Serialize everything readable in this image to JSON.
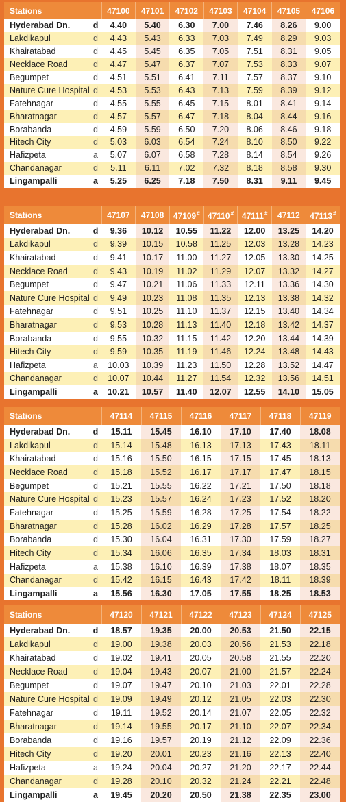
{
  "stations_label": "Stations",
  "blocks": [
    {
      "trains": [
        {
          "num": "47100",
          "mark": ""
        },
        {
          "num": "47101",
          "mark": ""
        },
        {
          "num": "47102",
          "mark": ""
        },
        {
          "num": "47103",
          "mark": ""
        },
        {
          "num": "47104",
          "mark": ""
        },
        {
          "num": "47105",
          "mark": ""
        },
        {
          "num": "47106",
          "mark": ""
        }
      ],
      "rows": [
        {
          "station": "Hyderabad Dn.",
          "code": "d",
          "times": [
            "4.40",
            "5.40",
            "6.30",
            "7.00",
            "7.46",
            "8.26",
            "9.00"
          ]
        },
        {
          "station": "Lakdikapul",
          "code": "d",
          "times": [
            "4.43",
            "5.43",
            "6.33",
            "7.03",
            "7.49",
            "8.29",
            "9.03"
          ]
        },
        {
          "station": "Khairatabad",
          "code": "d",
          "times": [
            "4.45",
            "5.45",
            "6.35",
            "7.05",
            "7.51",
            "8.31",
            "9.05"
          ]
        },
        {
          "station": "Necklace Road",
          "code": "d",
          "times": [
            "4.47",
            "5.47",
            "6.37",
            "7.07",
            "7.53",
            "8.33",
            "9.07"
          ]
        },
        {
          "station": "Begumpet",
          "code": "d",
          "times": [
            "4.51",
            "5.51",
            "6.41",
            "7.11",
            "7.57",
            "8.37",
            "9.10"
          ]
        },
        {
          "station": "Nature Cure Hospital",
          "code": "d",
          "times": [
            "4.53",
            "5.53",
            "6.43",
            "7.13",
            "7.59",
            "8.39",
            "9.12"
          ]
        },
        {
          "station": "Fatehnagar",
          "code": "d",
          "times": [
            "4.55",
            "5.55",
            "6.45",
            "7.15",
            "8.01",
            "8.41",
            "9.14"
          ]
        },
        {
          "station": "Bharatnagar",
          "code": "d",
          "times": [
            "4.57",
            "5.57",
            "6.47",
            "7.18",
            "8.04",
            "8.44",
            "9.16"
          ]
        },
        {
          "station": "Borabanda",
          "code": "d",
          "times": [
            "4.59",
            "5.59",
            "6.50",
            "7.20",
            "8.06",
            "8.46",
            "9.18"
          ]
        },
        {
          "station": "Hitech City",
          "code": "d",
          "times": [
            "5.03",
            "6.03",
            "6.54",
            "7.24",
            "8.10",
            "8.50",
            "9.22"
          ]
        },
        {
          "station": "Hafizpeta",
          "code": "a",
          "times": [
            "5.07",
            "6.07",
            "6.58",
            "7.28",
            "8.14",
            "8.54",
            "9.26"
          ]
        },
        {
          "station": "Chandanagar",
          "code": "d",
          "times": [
            "5.11",
            "6.11",
            "7.02",
            "7.32",
            "8.18",
            "8.58",
            "9.30"
          ]
        },
        {
          "station": "Lingampalli",
          "code": "a",
          "times": [
            "5.25",
            "6.25",
            "7.18",
            "7.50",
            "8.31",
            "9.11",
            "9.45"
          ]
        }
      ]
    },
    {
      "trains": [
        {
          "num": "47107",
          "mark": ""
        },
        {
          "num": "47108",
          "mark": ""
        },
        {
          "num": "47109",
          "mark": "#"
        },
        {
          "num": "47110",
          "mark": "#"
        },
        {
          "num": "47111",
          "mark": "#"
        },
        {
          "num": "47112",
          "mark": ""
        },
        {
          "num": "47113",
          "mark": "#"
        }
      ],
      "rows": [
        {
          "station": "Hyderabad Dn.",
          "code": "d",
          "times": [
            "9.36",
            "10.12",
            "10.55",
            "11.22",
            "12.00",
            "13.25",
            "14.20"
          ]
        },
        {
          "station": "Lakdikapul",
          "code": "d",
          "times": [
            "9.39",
            "10.15",
            "10.58",
            "11.25",
            "12.03",
            "13.28",
            "14.23"
          ]
        },
        {
          "station": "Khairatabad",
          "code": "d",
          "times": [
            "9.41",
            "10.17",
            "11.00",
            "11.27",
            "12.05",
            "13.30",
            "14.25"
          ]
        },
        {
          "station": "Necklace Road",
          "code": "d",
          "times": [
            "9.43",
            "10.19",
            "11.02",
            "11.29",
            "12.07",
            "13.32",
            "14.27"
          ]
        },
        {
          "station": "Begumpet",
          "code": "d",
          "times": [
            "9.47",
            "10.21",
            "11.06",
            "11.33",
            "12.11",
            "13.36",
            "14.30"
          ]
        },
        {
          "station": "Nature Cure Hospital",
          "code": "d",
          "times": [
            "9.49",
            "10.23",
            "11.08",
            "11.35",
            "12.13",
            "13.38",
            "14.32"
          ]
        },
        {
          "station": "Fatehnagar",
          "code": "d",
          "times": [
            "9.51",
            "10.25",
            "11.10",
            "11.37",
            "12.15",
            "13.40",
            "14.34"
          ]
        },
        {
          "station": "Bharatnagar",
          "code": "d",
          "times": [
            "9.53",
            "10.28",
            "11.13",
            "11.40",
            "12.18",
            "13.42",
            "14.37"
          ]
        },
        {
          "station": "Borabanda",
          "code": "d",
          "times": [
            "9.55",
            "10.32",
            "11.15",
            "11.42",
            "12.20",
            "13.44",
            "14.39"
          ]
        },
        {
          "station": "Hitech City",
          "code": "d",
          "times": [
            "9.59",
            "10.35",
            "11.19",
            "11.46",
            "12.24",
            "13.48",
            "14.43"
          ]
        },
        {
          "station": "Hafizpeta",
          "code": "a",
          "times": [
            "10.03",
            "10.39",
            "11.23",
            "11.50",
            "12.28",
            "13.52",
            "14.47"
          ]
        },
        {
          "station": "Chandanagar",
          "code": "d",
          "times": [
            "10.07",
            "10.44",
            "11.27",
            "11.54",
            "12.32",
            "13.56",
            "14.51"
          ]
        },
        {
          "station": "Lingampalli",
          "code": "a",
          "times": [
            "10.21",
            "10.57",
            "11.40",
            "12.07",
            "12.55",
            "14.10",
            "15.05"
          ]
        }
      ]
    },
    {
      "trains": [
        {
          "num": "47114",
          "mark": ""
        },
        {
          "num": "47115",
          "mark": ""
        },
        {
          "num": "47116",
          "mark": ""
        },
        {
          "num": "47117",
          "mark": ""
        },
        {
          "num": "47118",
          "mark": ""
        },
        {
          "num": "47119",
          "mark": ""
        }
      ],
      "rows": [
        {
          "station": "Hyderabad Dn.",
          "code": "d",
          "times": [
            "15.11",
            "15.45",
            "16.10",
            "17.10",
            "17.40",
            "18.08"
          ]
        },
        {
          "station": "Lakdikapul",
          "code": "d",
          "times": [
            "15.14",
            "15.48",
            "16.13",
            "17.13",
            "17.43",
            "18.11"
          ]
        },
        {
          "station": "Khairatabad",
          "code": "d",
          "times": [
            "15.16",
            "15.50",
            "16.15",
            "17.15",
            "17.45",
            "18.13"
          ]
        },
        {
          "station": "Necklace Road",
          "code": "d",
          "times": [
            "15.18",
            "15.52",
            "16.17",
            "17.17",
            "17.47",
            "18.15"
          ]
        },
        {
          "station": "Begumpet",
          "code": "d",
          "times": [
            "15.21",
            "15.55",
            "16.22",
            "17.21",
            "17.50",
            "18.18"
          ]
        },
        {
          "station": "Nature Cure Hospital",
          "code": "d",
          "times": [
            "15.23",
            "15.57",
            "16.24",
            "17.23",
            "17.52",
            "18.20"
          ]
        },
        {
          "station": "Fatehnagar",
          "code": "d",
          "times": [
            "15.25",
            "15.59",
            "16.28",
            "17.25",
            "17.54",
            "18.22"
          ]
        },
        {
          "station": "Bharatnagar",
          "code": "d",
          "times": [
            "15.28",
            "16.02",
            "16.29",
            "17.28",
            "17.57",
            "18.25"
          ]
        },
        {
          "station": "Borabanda",
          "code": "d",
          "times": [
            "15.30",
            "16.04",
            "16.31",
            "17.30",
            "17.59",
            "18.27"
          ]
        },
        {
          "station": "Hitech City",
          "code": "d",
          "times": [
            "15.34",
            "16.06",
            "16.35",
            "17.34",
            "18.03",
            "18.31"
          ]
        },
        {
          "station": "Hafizpeta",
          "code": "a",
          "times": [
            "15.38",
            "16.10",
            "16.39",
            "17.38",
            "18.07",
            "18.35"
          ]
        },
        {
          "station": "Chandanagar",
          "code": "d",
          "times": [
            "15.42",
            "16.15",
            "16.43",
            "17.42",
            "18.11",
            "18.39"
          ]
        },
        {
          "station": "Lingampalli",
          "code": "a",
          "times": [
            "15.56",
            "16.30",
            "17.05",
            "17.55",
            "18.25",
            "18.53"
          ]
        }
      ]
    },
    {
      "trains": [
        {
          "num": "47120",
          "mark": ""
        },
        {
          "num": "47121",
          "mark": ""
        },
        {
          "num": "47122",
          "mark": ""
        },
        {
          "num": "47123",
          "mark": ""
        },
        {
          "num": "47124",
          "mark": ""
        },
        {
          "num": "47125",
          "mark": ""
        }
      ],
      "rows": [
        {
          "station": "Hyderabad Dn.",
          "code": "d",
          "times": [
            "18.57",
            "19.35",
            "20.00",
            "20.53",
            "21.50",
            "22.15"
          ]
        },
        {
          "station": "Lakdikapul",
          "code": "d",
          "times": [
            "19.00",
            "19.38",
            "20.03",
            "20.56",
            "21.53",
            "22.18"
          ]
        },
        {
          "station": "Khairatabad",
          "code": "d",
          "times": [
            "19.02",
            "19.41",
            "20.05",
            "20.58",
            "21.55",
            "22.20"
          ]
        },
        {
          "station": "Necklace Road",
          "code": "d",
          "times": [
            "19.04",
            "19.43",
            "20.07",
            "21.00",
            "21.57",
            "22.24"
          ]
        },
        {
          "station": "Begumpet",
          "code": "d",
          "times": [
            "19.07",
            "19.47",
            "20.10",
            "21.03",
            "22.01",
            "22.28"
          ]
        },
        {
          "station": "Nature Cure Hospital",
          "code": "d",
          "times": [
            "19.09",
            "19.49",
            "20.12",
            "21.05",
            "22.03",
            "22.30"
          ]
        },
        {
          "station": "Fatehnagar",
          "code": "d",
          "times": [
            "19.11",
            "19.52",
            "20.14",
            "21.07",
            "22.05",
            "22.32"
          ]
        },
        {
          "station": "Bharatnagar",
          "code": "d",
          "times": [
            "19.14",
            "19.55",
            "20.17",
            "21.10",
            "22.07",
            "22.34"
          ]
        },
        {
          "station": "Borabanda",
          "code": "d",
          "times": [
            "19.16",
            "19.57",
            "20.19",
            "21.12",
            "22.09",
            "22.36"
          ]
        },
        {
          "station": "Hitech City",
          "code": "d",
          "times": [
            "19.20",
            "20.01",
            "20.23",
            "21.16",
            "22.13",
            "22.40"
          ]
        },
        {
          "station": "Hafizpeta",
          "code": "a",
          "times": [
            "19.24",
            "20.04",
            "20.27",
            "21.20",
            "22.17",
            "22.44"
          ]
        },
        {
          "station": "Chandanagar",
          "code": "d",
          "times": [
            "19.28",
            "20.10",
            "20.32",
            "21.24",
            "22.21",
            "22.48"
          ]
        },
        {
          "station": "Lingampalli",
          "code": "a",
          "times": [
            "19.45",
            "20.20",
            "20.50",
            "21.38",
            "22.35",
            "23.00"
          ]
        }
      ]
    }
  ]
}
